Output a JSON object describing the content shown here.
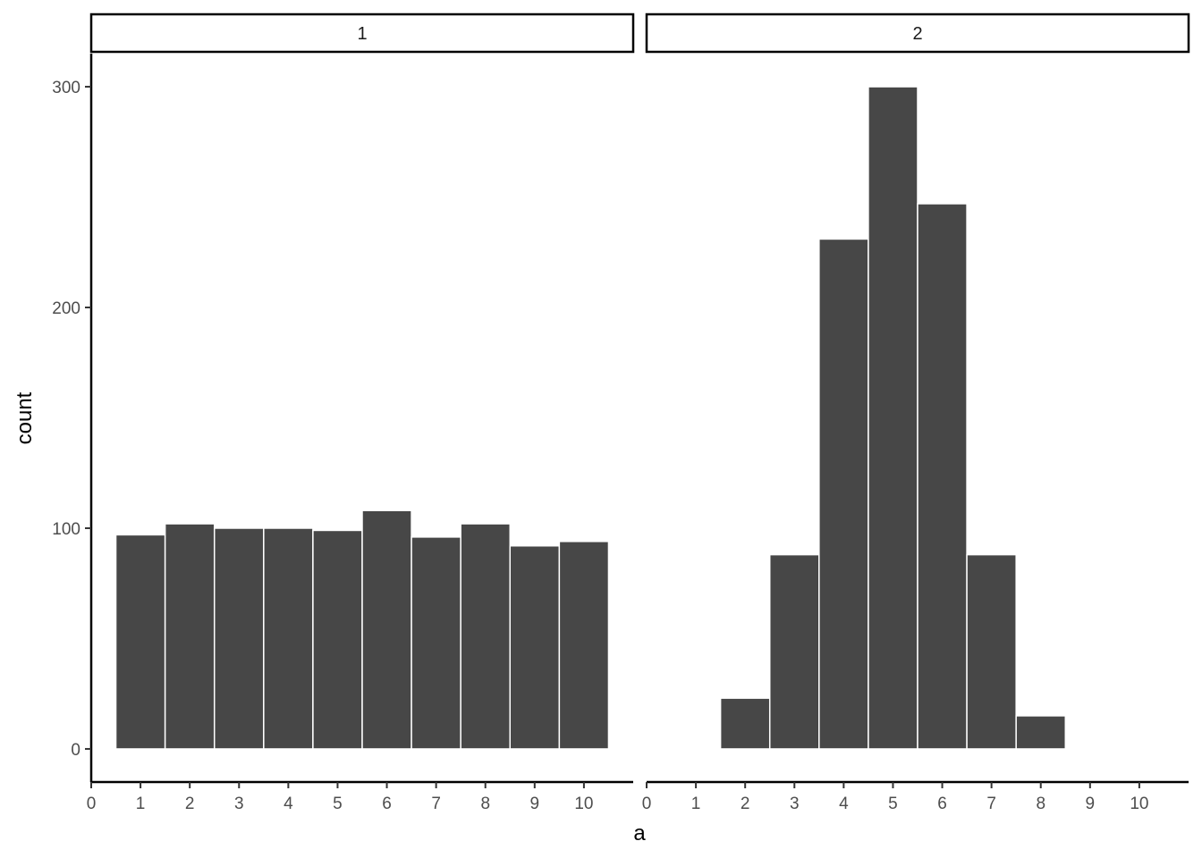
{
  "chart_data": {
    "type": "bar",
    "xlabel": "a",
    "ylabel": "count",
    "xlim": [
      0,
      11
    ],
    "ylim": [
      -15,
      315
    ],
    "x_ticks": [
      "0",
      "1",
      "2",
      "3",
      "4",
      "5",
      "6",
      "7",
      "8",
      "9",
      "10"
    ],
    "y_ticks": [
      "0",
      "100",
      "200",
      "300"
    ],
    "grid": false,
    "colors": {
      "bar_fill": "#474747",
      "bar_outline": "#ffffff"
    },
    "panels": [
      {
        "label": "1",
        "bars": [
          {
            "x": 1,
            "count": 97
          },
          {
            "x": 2,
            "count": 102
          },
          {
            "x": 3,
            "count": 100
          },
          {
            "x": 4,
            "count": 100
          },
          {
            "x": 5,
            "count": 99
          },
          {
            "x": 6,
            "count": 108
          },
          {
            "x": 7,
            "count": 96
          },
          {
            "x": 8,
            "count": 102
          },
          {
            "x": 9,
            "count": 92
          },
          {
            "x": 10,
            "count": 94
          }
        ]
      },
      {
        "label": "2",
        "bars": [
          {
            "x": 2,
            "count": 23
          },
          {
            "x": 3,
            "count": 88
          },
          {
            "x": 4,
            "count": 231
          },
          {
            "x": 5,
            "count": 300
          },
          {
            "x": 6,
            "count": 247
          },
          {
            "x": 7,
            "count": 88
          },
          {
            "x": 8,
            "count": 15
          }
        ]
      }
    ]
  }
}
